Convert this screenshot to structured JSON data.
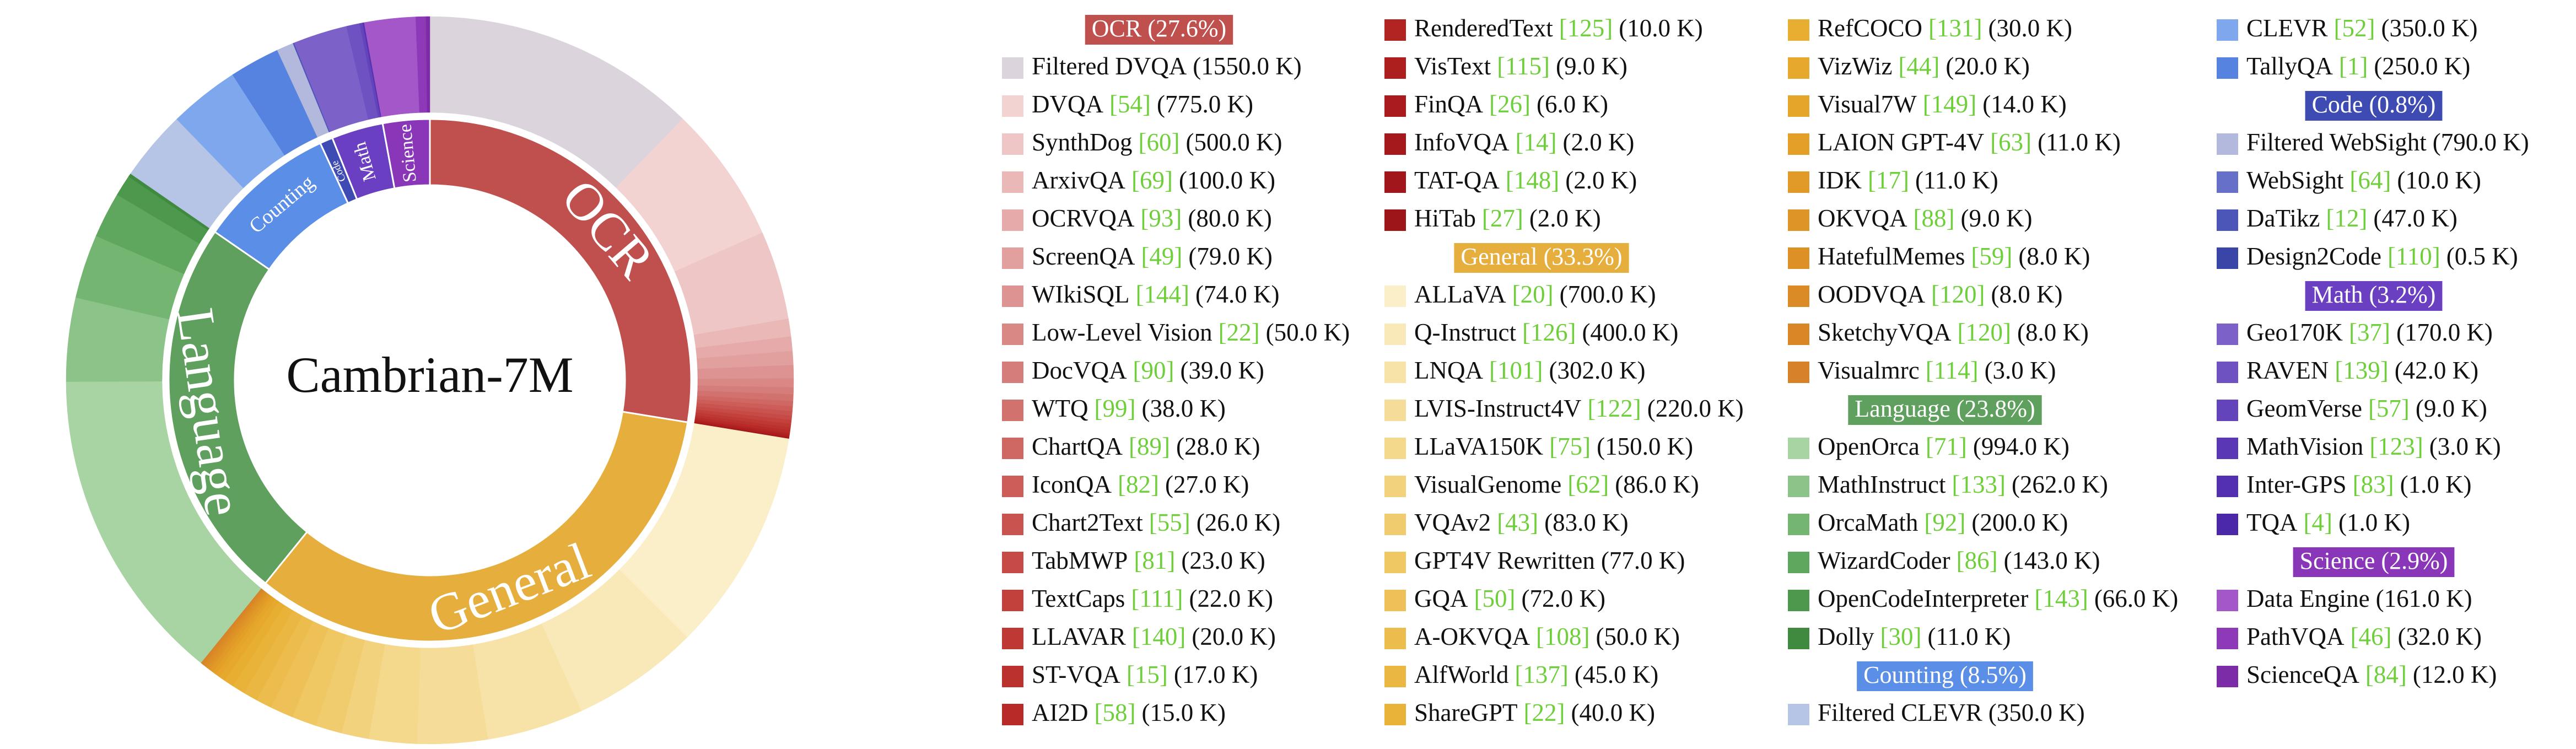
{
  "chart_data": {
    "type": "sunburst",
    "title": "Cambrian-7M",
    "groups": [
      {
        "name": "OCR",
        "legend_label": "OCR (27.6%)",
        "percent": 27.6,
        "color": "#c0504d",
        "items": [
          {
            "name": "Filtered DVQA",
            "size": 1550,
            "size_label": "(1550.0 K)",
            "color": "#dcd4dc"
          },
          {
            "name": "DVQA",
            "ref": "[54]",
            "size": 775,
            "size_label": "(775.0 K)",
            "color": "#f3d3d2"
          },
          {
            "name": "SynthDog",
            "ref": "[60]",
            "size": 500,
            "size_label": "(500.0 K)",
            "color": "#eec6c5"
          },
          {
            "name": "ArxivQA",
            "ref": "[69]",
            "size": 100,
            "size_label": "(100.0 K)",
            "color": "#e9b8b7"
          },
          {
            "name": "OCRVQA",
            "ref": "[93]",
            "size": 80,
            "size_label": "(80.0 K)",
            "color": "#e5aaa9"
          },
          {
            "name": "ScreenQA",
            "ref": "[49]",
            "size": 79,
            "size_label": "(79.0 K)",
            "color": "#e19f9d"
          },
          {
            "name": "WIkiSQL",
            "ref": "[144]",
            "size": 74,
            "size_label": "(74.0 K)",
            "color": "#dc9391"
          },
          {
            "name": "Low-Level Vision",
            "ref": "[22]",
            "size": 50,
            "size_label": "(50.0 K)",
            "color": "#d98886"
          },
          {
            "name": "DocVQA",
            "ref": "[90]",
            "size": 39,
            "size_label": "(39.0 K)",
            "color": "#d57d7a"
          },
          {
            "name": "WTQ",
            "ref": "[99]",
            "size": 38,
            "size_label": "(38.0 K)",
            "color": "#d2726f"
          },
          {
            "name": "ChartQA",
            "ref": "[89]",
            "size": 28,
            "size_label": "(28.0 K)",
            "color": "#cf6763"
          },
          {
            "name": "IconQA",
            "ref": "[82]",
            "size": 27,
            "size_label": "(27.0 K)",
            "color": "#cc5d58"
          },
          {
            "name": "Chart2Text",
            "ref": "[55]",
            "size": 26,
            "size_label": "(26.0 K)",
            "color": "#c9534e"
          },
          {
            "name": "TabMWP",
            "ref": "[81]",
            "size": 23,
            "size_label": "(23.0 K)",
            "color": "#c64a45"
          },
          {
            "name": "TextCaps",
            "ref": "[111]",
            "size": 22,
            "size_label": "(22.0 K)",
            "color": "#c3413c"
          },
          {
            "name": "LLAVAR",
            "ref": "[140]",
            "size": 20,
            "size_label": "(20.0 K)",
            "color": "#bf3934"
          },
          {
            "name": "ST-VQA",
            "ref": "[15]",
            "size": 17,
            "size_label": "(17.0 K)",
            "color": "#bb312d"
          },
          {
            "name": "AI2D",
            "ref": "[58]",
            "size": 15,
            "size_label": "(15.0 K)",
            "color": "#b72a27"
          },
          {
            "name": "RenderedText",
            "ref": "[125]",
            "size": 10,
            "size_label": "(10.0 K)",
            "color": "#b22422"
          },
          {
            "name": "VisText",
            "ref": "[115]",
            "size": 9,
            "size_label": "(9.0 K)",
            "color": "#ad1f1f"
          },
          {
            "name": "FinQA",
            "ref": "[26]",
            "size": 6,
            "size_label": "(6.0 K)",
            "color": "#a91b1d"
          },
          {
            "name": "InfoVQA",
            "ref": "[14]",
            "size": 2,
            "size_label": "(2.0 K)",
            "color": "#a5181b"
          },
          {
            "name": "TAT-QA",
            "ref": "[148]",
            "size": 2,
            "size_label": "(2.0 K)",
            "color": "#a1161a"
          },
          {
            "name": "HiTab",
            "ref": "[27]",
            "size": 2,
            "size_label": "(2.0 K)",
            "color": "#9d1419"
          }
        ]
      },
      {
        "name": "General",
        "legend_label": "General (33.3%)",
        "percent": 33.3,
        "color": "#e6ae3c",
        "items": [
          {
            "name": "ALLaVA",
            "ref": "[20]",
            "size": 700,
            "size_label": "(700.0 K)",
            "color": "#fbefc9"
          },
          {
            "name": "Q-Instruct",
            "ref": "[126]",
            "size": 400,
            "size_label": "(400.0 K)",
            "color": "#f9e9b8"
          },
          {
            "name": "LNQA",
            "ref": "[101]",
            "size": 302,
            "size_label": "(302.0 K)",
            "color": "#f7e3a8"
          },
          {
            "name": "LVIS-Instruct4V",
            "ref": "[122]",
            "size": 220,
            "size_label": "(220.0 K)",
            "color": "#f5dd99"
          },
          {
            "name": "LLaVA150K",
            "ref": "[75]",
            "size": 150,
            "size_label": "(150.0 K)",
            "color": "#f4d88b"
          },
          {
            "name": "VisualGenome",
            "ref": "[62]",
            "size": 86,
            "size_label": "(86.0 K)",
            "color": "#f2d27d"
          },
          {
            "name": "VQAv2",
            "ref": "[43]",
            "size": 83,
            "size_label": "(83.0 K)",
            "color": "#f0cc6f"
          },
          {
            "name": "GPT4V Rewritten",
            "size": 77,
            "size_label": "(77.0 K)",
            "color": "#efc763"
          },
          {
            "name": "GQA",
            "ref": "[50]",
            "size": 72,
            "size_label": "(72.0 K)",
            "color": "#edc157"
          },
          {
            "name": "A-OKVQA",
            "ref": "[108]",
            "size": 50,
            "size_label": "(50.0 K)",
            "color": "#ecbc4c"
          },
          {
            "name": "AlfWorld",
            "ref": "[137]",
            "size": 45,
            "size_label": "(45.0 K)",
            "color": "#eab742"
          },
          {
            "name": "ShareGPT",
            "ref": "[22]",
            "size": 40,
            "size_label": "(40.0 K)",
            "color": "#e9b239"
          },
          {
            "name": "RefCOCO",
            "ref": "[131]",
            "size": 30,
            "size_label": "(30.0 K)",
            "color": "#e8ae32"
          },
          {
            "name": "VizWiz",
            "ref": "[44]",
            "size": 20,
            "size_label": "(20.0 K)",
            "color": "#e6a92d"
          },
          {
            "name": "Visual7W",
            "ref": "[149]",
            "size": 14,
            "size_label": "(14.0 K)",
            "color": "#e5a42a"
          },
          {
            "name": "LAION GPT-4V",
            "ref": "[63]",
            "size": 11,
            "size_label": "(11.0 K)",
            "color": "#e39f28"
          },
          {
            "name": "IDK",
            "ref": "[17]",
            "size": 11,
            "size_label": "(11.0 K)",
            "color": "#e19a27"
          },
          {
            "name": "OKVQA",
            "ref": "[88]",
            "size": 9,
            "size_label": "(9.0 K)",
            "color": "#df9526"
          },
          {
            "name": "HatefulMemes",
            "ref": "[59]",
            "size": 8,
            "size_label": "(8.0 K)",
            "color": "#dd9026"
          },
          {
            "name": "OODVQA",
            "ref": "[120]",
            "size": 8,
            "size_label": "(8.0 K)",
            "color": "#db8b26"
          },
          {
            "name": "SketchyVQA",
            "ref": "[120]",
            "size": 8,
            "size_label": "(8.0 K)",
            "color": "#d98627"
          },
          {
            "name": "Visualmrc",
            "ref": "[114]",
            "size": 3,
            "size_label": "(3.0 K)",
            "color": "#d78128"
          }
        ]
      },
      {
        "name": "Language",
        "legend_label": "Language (23.8%)",
        "percent": 23.8,
        "color": "#5fa05f",
        "items": [
          {
            "name": "OpenOrca",
            "ref": "[71]",
            "size": 994,
            "size_label": "(994.0 K)",
            "color": "#a8d3a2"
          },
          {
            "name": "MathInstruct",
            "ref": "[133]",
            "size": 262,
            "size_label": "(262.0 K)",
            "color": "#8cc388"
          },
          {
            "name": "OrcaMath",
            "ref": "[92]",
            "size": 200,
            "size_label": "(200.0 K)",
            "color": "#74b572"
          },
          {
            "name": "WizardCoder",
            "ref": "[86]",
            "size": 143,
            "size_label": "(143.0 K)",
            "color": "#5fa65e"
          },
          {
            "name": "OpenCodeInterpreter",
            "ref": "[143]",
            "size": 66,
            "size_label": "(66.0 K)",
            "color": "#4e984e"
          },
          {
            "name": "Dolly",
            "ref": "[30]",
            "size": 11,
            "size_label": "(11.0 K)",
            "color": "#3f8a3f"
          }
        ]
      },
      {
        "name": "Counting",
        "legend_label": "Counting (8.5%)",
        "percent": 8.5,
        "color": "#5b8ee6",
        "items": [
          {
            "name": "Filtered CLEVR",
            "size": 350,
            "size_label": "(350.0 K)",
            "color": "#b6c4e6"
          },
          {
            "name": "CLEVR",
            "ref": "[52]",
            "size": 350,
            "size_label": "(350.0 K)",
            "color": "#7fa7ee"
          },
          {
            "name": "TallyQA",
            "ref": "[1]",
            "size": 250,
            "size_label": "(250.0 K)",
            "color": "#5683e0"
          }
        ]
      },
      {
        "name": "Code",
        "legend_label": "Code (0.8%)",
        "percent": 0.8,
        "color": "#3d4bb3",
        "items": [
          {
            "name": "Filtered WebSight",
            "size": 790,
            "size_label": "(790.0 K)",
            "color": "#b3b8dd"
          },
          {
            "name": "WebSight",
            "ref": "[64]",
            "size": 10,
            "size_label": "(10.0 K)",
            "color": "#6670c8"
          },
          {
            "name": "DaTikz",
            "ref": "[12]",
            "size": 47,
            "size_label": "(47.0 K)",
            "color": "#4b56b8"
          },
          {
            "name": "Design2Code",
            "ref": "[110]",
            "size": 0.5,
            "size_label": "(0.5 K)",
            "color": "#3a45a8"
          }
        ]
      },
      {
        "name": "Math",
        "legend_label": "Math (3.2%)",
        "percent": 3.2,
        "color": "#6a3fc2",
        "items": [
          {
            "name": "Geo170K",
            "ref": "[37]",
            "size": 170,
            "size_label": "(170.0 K)",
            "color": "#7c62c8"
          },
          {
            "name": "RAVEN",
            "ref": "[139]",
            "size": 42,
            "size_label": "(42.0 K)",
            "color": "#6f52c2"
          },
          {
            "name": "GeomVerse",
            "ref": "[57]",
            "size": 9,
            "size_label": "(9.0 K)",
            "color": "#6444bb"
          },
          {
            "name": "MathVision",
            "ref": "[123]",
            "size": 3,
            "size_label": "(3.0 K)",
            "color": "#5a38b5"
          },
          {
            "name": "Inter-GPS",
            "ref": "[83]",
            "size": 1,
            "size_label": "(1.0 K)",
            "color": "#5230af"
          },
          {
            "name": "TQA",
            "ref": "[4]",
            "size": 1,
            "size_label": "(1.0 K)",
            "color": "#4a28a8"
          }
        ]
      },
      {
        "name": "Science",
        "legend_label": "Science (2.9%)",
        "percent": 2.9,
        "color": "#8a36b8",
        "items": [
          {
            "name": "Data Engine",
            "size": 161,
            "size_label": "(161.0 K)",
            "color": "#a457c9"
          },
          {
            "name": "PathVQA",
            "ref": "[46]",
            "size": 32,
            "size_label": "(32.0 K)",
            "color": "#8e3ab8"
          },
          {
            "name": "ScienceQA",
            "ref": "[84]",
            "size": 12,
            "size_label": "(12.0 K)",
            "color": "#7b2ca6"
          }
        ]
      }
    ]
  }
}
